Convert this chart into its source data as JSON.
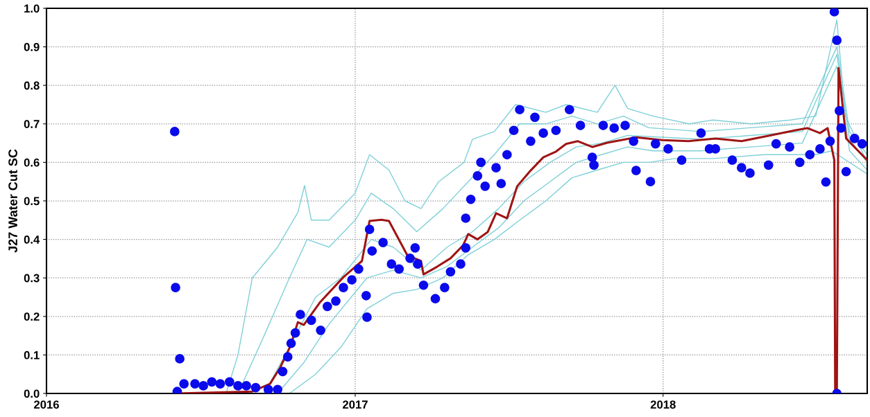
{
  "chart_data": {
    "type": "line",
    "ylabel": "J27 Water Cut SC",
    "xlim": [
      "2016-01-01",
      "2018-08-31"
    ],
    "xticks": [
      {
        "value": "2016-01-01",
        "label": "2016"
      },
      {
        "value": "2017-01-01",
        "label": "2017"
      },
      {
        "value": "2018-01-01",
        "label": "2018"
      }
    ],
    "ylim": [
      0,
      1
    ],
    "yticks": [
      {
        "value": 0,
        "label": "0.0"
      },
      {
        "value": 0.1,
        "label": "0.1"
      },
      {
        "value": 0.2,
        "label": "0.2"
      },
      {
        "value": 0.3,
        "label": "0.3"
      },
      {
        "value": 0.4,
        "label": "0.4"
      },
      {
        "value": 0.5,
        "label": "0.5"
      },
      {
        "value": 0.6,
        "label": "0.6"
      },
      {
        "value": 0.7,
        "label": "0.7"
      },
      {
        "value": 0.8,
        "label": "0.8"
      },
      {
        "value": 0.9,
        "label": "0.9"
      },
      {
        "value": 1,
        "label": "1.0"
      }
    ],
    "grid": true,
    "line_style": "solid",
    "series": [
      {
        "color": "#7fd0d8",
        "x": [
          "2016-08-01",
          "2016-08-15",
          "2016-09-01",
          "2016-10-01",
          "2016-10-25",
          "2016-11-02",
          "2016-11-10",
          "2016-12-01",
          "2017-01-01",
          "2017-01-18",
          "2017-02-10",
          "2017-03-01",
          "2017-03-20",
          "2017-04-10",
          "2017-05-10",
          "2017-05-20",
          "2017-06-15",
          "2017-07-10",
          "2017-08-15",
          "2017-09-08",
          "2017-10-15",
          "2017-11-05",
          "2017-11-20",
          "2017-12-20",
          "2018-02-01",
          "2018-03-01",
          "2018-04-15",
          "2018-06-01",
          "2018-07-01",
          "2018-07-26",
          "2018-08-05",
          "2018-08-31"
        ],
        "values": [
          0,
          0.1,
          0.3,
          0.38,
          0.47,
          0.54,
          0.45,
          0.45,
          0.52,
          0.62,
          0.58,
          0.5,
          0.48,
          0.55,
          0.6,
          0.66,
          0.68,
          0.75,
          0.73,
          0.75,
          0.73,
          0.8,
          0.74,
          0.72,
          0.7,
          0.71,
          0.7,
          0.71,
          0.72,
          0.97,
          0.72,
          0.6
        ]
      },
      {
        "color": "#7fd0d8",
        "x": [
          "2016-08-15",
          "2016-09-15",
          "2016-10-15",
          "2016-11-05",
          "2016-12-01",
          "2017-01-01",
          "2017-01-20",
          "2017-02-15",
          "2017-03-15",
          "2017-04-15",
          "2017-05-15",
          "2017-06-15",
          "2017-07-15",
          "2017-08-15",
          "2017-09-15",
          "2017-10-15",
          "2017-11-15",
          "2017-12-15",
          "2018-02-15",
          "2018-04-15",
          "2018-06-15",
          "2018-07-26",
          "2018-08-10",
          "2018-08-31"
        ],
        "values": [
          0,
          0.15,
          0.3,
          0.4,
          0.38,
          0.45,
          0.52,
          0.48,
          0.42,
          0.48,
          0.55,
          0.62,
          0.7,
          0.7,
          0.72,
          0.7,
          0.72,
          0.69,
          0.68,
          0.69,
          0.7,
          0.9,
          0.68,
          0.62
        ]
      },
      {
        "color": "#7fd0d8",
        "x": [
          "2016-09-15",
          "2016-10-15",
          "2016-11-15",
          "2016-12-15",
          "2017-01-20",
          "2017-02-15",
          "2017-03-20",
          "2017-04-20",
          "2017-05-20",
          "2017-06-20",
          "2017-07-20",
          "2017-08-20",
          "2017-09-20",
          "2017-10-20",
          "2017-11-20",
          "2018-02-15",
          "2018-04-15",
          "2018-06-15",
          "2018-07-26",
          "2018-08-10",
          "2018-08-31"
        ],
        "values": [
          0,
          0.12,
          0.25,
          0.3,
          0.4,
          0.38,
          0.32,
          0.38,
          0.42,
          0.48,
          0.55,
          0.6,
          0.64,
          0.65,
          0.67,
          0.66,
          0.67,
          0.68,
          0.88,
          0.66,
          0.6
        ]
      },
      {
        "color": "#7fd0d8",
        "x": [
          "2016-10-01",
          "2016-11-01",
          "2016-12-01",
          "2017-01-15",
          "2017-02-15",
          "2017-03-20",
          "2017-04-20",
          "2017-05-20",
          "2017-06-20",
          "2017-07-20",
          "2017-08-20",
          "2017-09-20",
          "2017-10-20",
          "2017-11-20",
          "2017-12-20",
          "2018-02-15",
          "2018-04-15",
          "2018-06-15",
          "2018-07-26",
          "2018-08-10",
          "2018-08-31"
        ],
        "values": [
          0,
          0.08,
          0.18,
          0.3,
          0.32,
          0.3,
          0.33,
          0.38,
          0.43,
          0.5,
          0.55,
          0.6,
          0.62,
          0.64,
          0.63,
          0.63,
          0.64,
          0.65,
          0.85,
          0.63,
          0.58
        ]
      },
      {
        "color": "#7fd0d8",
        "x": [
          "2016-10-15",
          "2016-11-15",
          "2016-12-15",
          "2017-01-15",
          "2017-02-15",
          "2017-03-15",
          "2017-04-15",
          "2017-05-15",
          "2017-06-15",
          "2017-07-15",
          "2017-08-15",
          "2017-09-15",
          "2017-10-15",
          "2017-11-15",
          "2017-12-15",
          "2018-01-15",
          "2018-03-01",
          "2018-05-01",
          "2018-07-01",
          "2018-07-20",
          "2018-08-31"
        ],
        "values": [
          0,
          0.05,
          0.12,
          0.22,
          0.26,
          0.27,
          0.3,
          0.36,
          0.4,
          0.45,
          0.5,
          0.56,
          0.58,
          0.6,
          0.6,
          0.61,
          0.61,
          0.62,
          0.62,
          0.63,
          0.57
        ]
      },
      {
        "color": "#a01414",
        "x": [
          "2016-06-01",
          "2016-09-01",
          "2016-09-22",
          "2016-10-04",
          "2016-10-16",
          "2016-10-25",
          "2016-11-01",
          "2016-11-20",
          "2016-12-18",
          "2017-01-09",
          "2017-01-18",
          "2017-02-01",
          "2017-02-10",
          "2017-03-04",
          "2017-03-20",
          "2017-03-23",
          "2017-04-08",
          "2017-04-24",
          "2017-05-09",
          "2017-05-15",
          "2017-05-26",
          "2017-06-07",
          "2017-06-17",
          "2017-06-30",
          "2017-07-12",
          "2017-07-28",
          "2017-08-12",
          "2017-08-27",
          "2017-09-08",
          "2017-09-22",
          "2017-10-09",
          "2017-10-27",
          "2017-11-30",
          "2017-12-31",
          "2018-01-31",
          "2018-03-04",
          "2018-04-04",
          "2018-05-06",
          "2018-06-06",
          "2018-06-21",
          "2018-07-06",
          "2018-07-15",
          "2018-07-23",
          "2018-07-24",
          "2018-07-26",
          "2018-07-28",
          "2018-08-06",
          "2018-08-18",
          "2018-08-31"
        ],
        "values": [
          0,
          0.005,
          0.025,
          0.067,
          0.122,
          0.185,
          0.178,
          0.236,
          0.302,
          0.344,
          0.448,
          0.451,
          0.448,
          0.358,
          0.344,
          0.309,
          0.329,
          0.351,
          0.385,
          0.414,
          0.4,
          0.419,
          0.468,
          0.455,
          0.538,
          0.579,
          0.613,
          0.628,
          0.648,
          0.655,
          0.64,
          0.651,
          0.665,
          0.658,
          0.655,
          0.662,
          0.655,
          0.669,
          0.683,
          0.689,
          0.676,
          0.689,
          0.606,
          0,
          0,
          0.845,
          0.662,
          0.635,
          0.606
        ]
      },
      {
        "type": "scatter",
        "color": "#0a0aeb",
        "marker": "circle",
        "x": [
          "2016-06-01",
          "2016-06-02",
          "2016-06-04",
          "2016-06-07",
          "2016-06-12",
          "2016-06-25",
          "2016-07-05",
          "2016-07-15",
          "2016-07-25",
          "2016-08-05",
          "2016-08-15",
          "2016-08-25",
          "2016-09-05",
          "2016-09-20",
          "2016-10-01",
          "2016-10-07",
          "2016-10-13",
          "2016-10-17",
          "2016-10-22",
          "2016-10-28",
          "2016-11-10",
          "2016-11-21",
          "2016-11-29",
          "2016-12-09",
          "2016-12-18",
          "2016-12-28",
          "2017-01-05",
          "2017-01-14",
          "2017-01-15",
          "2017-01-18",
          "2017-01-21",
          "2017-02-03",
          "2017-02-13",
          "2017-02-22",
          "2017-03-07",
          "2017-03-13",
          "2017-03-16",
          "2017-03-23",
          "2017-04-06",
          "2017-04-17",
          "2017-04-24",
          "2017-05-06",
          "2017-05-12",
          "2017-05-12",
          "2017-05-18",
          "2017-05-26",
          "2017-05-30",
          "2017-06-04",
          "2017-06-17",
          "2017-06-23",
          "2017-06-30",
          "2017-07-08",
          "2017-07-15",
          "2017-07-28",
          "2017-08-02",
          "2017-08-12",
          "2017-08-27",
          "2017-09-12",
          "2017-09-25",
          "2017-10-09",
          "2017-10-11",
          "2017-10-22",
          "2017-11-04",
          "2017-11-17",
          "2017-11-27",
          "2017-11-30",
          "2017-12-17",
          "2017-12-23",
          "2018-01-07",
          "2018-01-23",
          "2018-02-15",
          "2018-02-25",
          "2018-03-04",
          "2018-03-24",
          "2018-04-04",
          "2018-04-14",
          "2018-05-06",
          "2018-05-15",
          "2018-05-31",
          "2018-06-12",
          "2018-06-24",
          "2018-07-06",
          "2018-07-13",
          "2018-07-18",
          "2018-07-23",
          "2018-07-26",
          "2018-07-26",
          "2018-07-29",
          "2018-07-31",
          "2018-08-06",
          "2018-08-16",
          "2018-08-25"
        ],
        "values": [
          0.68,
          0.275,
          0.005,
          0.09,
          0.025,
          0.025,
          0.02,
          0.03,
          0.025,
          0.03,
          0.02,
          0.02,
          0.015,
          0.01,
          0.01,
          0.057,
          0.095,
          0.13,
          0.157,
          0.205,
          0.19,
          0.164,
          0.226,
          0.24,
          0.275,
          0.295,
          0.323,
          0.254,
          0.198,
          0.426,
          0.37,
          0.392,
          0.336,
          0.323,
          0.351,
          0.378,
          0.336,
          0.281,
          0.246,
          0.275,
          0.316,
          0.336,
          0.378,
          0.455,
          0.504,
          0.565,
          0.6,
          0.538,
          0.586,
          0.545,
          0.62,
          0.683,
          0.737,
          0.655,
          0.717,
          0.676,
          0.683,
          0.737,
          0.696,
          0.613,
          0.593,
          0.696,
          0.689,
          0.696,
          0.655,
          0.579,
          0.55,
          0.648,
          0.635,
          0.606,
          0.676,
          0.635,
          0.635,
          0.606,
          0.586,
          0.572,
          0.593,
          0.648,
          0.64,
          0.6,
          0.62,
          0.635,
          0.549,
          0.655,
          0.991,
          0.917,
          0,
          0.734,
          0.689,
          0.576,
          0.662,
          0.648
        ]
      }
    ]
  }
}
